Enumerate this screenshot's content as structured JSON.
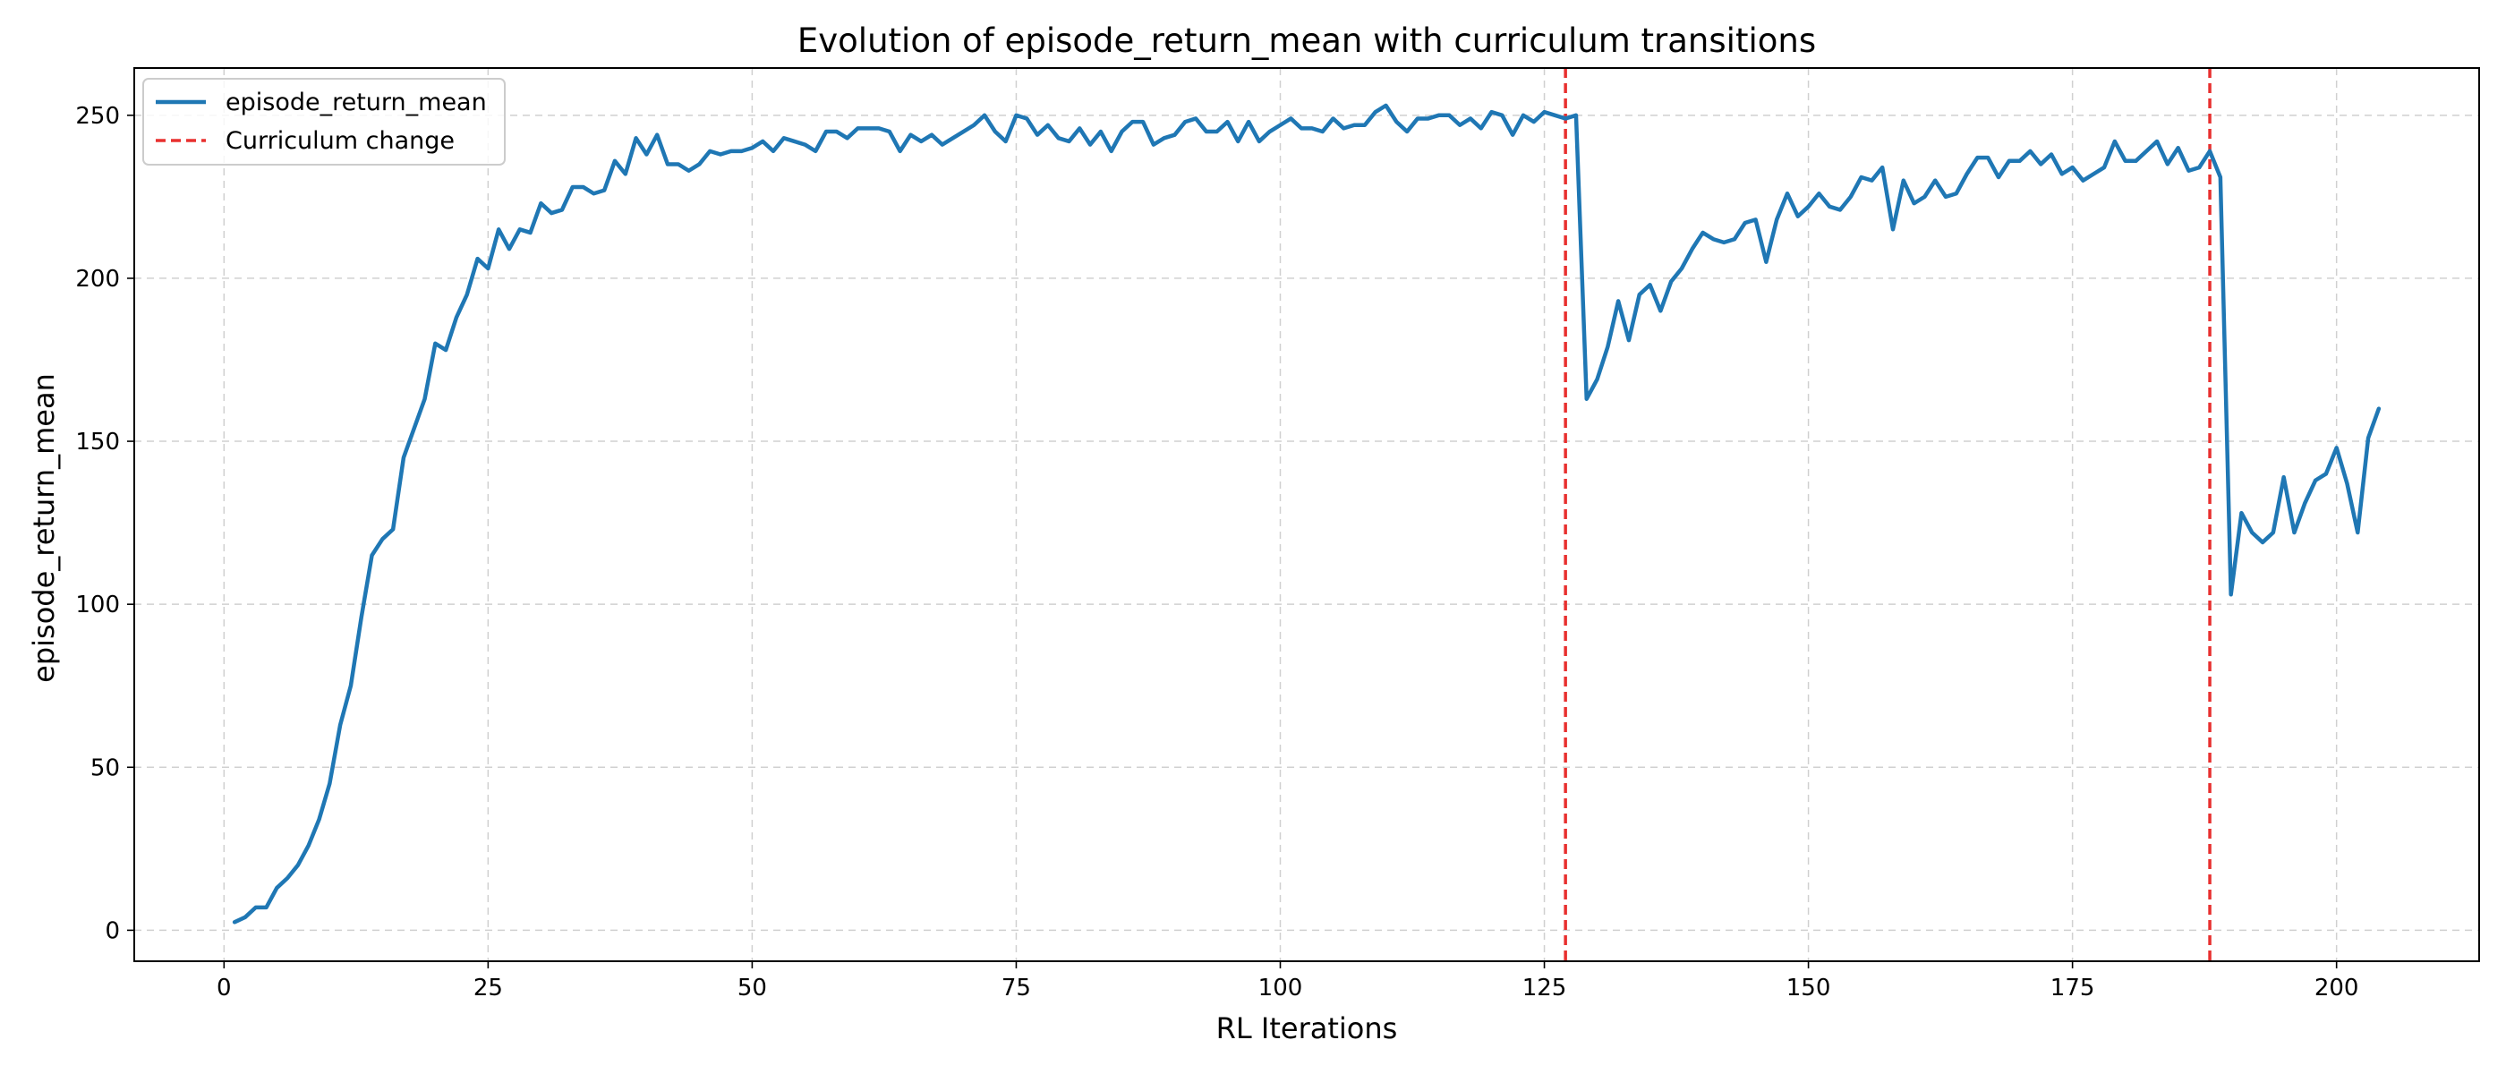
{
  "chart_data": {
    "type": "line",
    "title": "Evolution of episode_return_mean with curriculum transitions",
    "xlabel": "RL Iterations",
    "ylabel": "episode_return_mean",
    "xlim": [
      -8.5,
      213.5
    ],
    "ylim": [
      -9.5,
      264.5
    ],
    "xticks": [
      0,
      25,
      50,
      75,
      100,
      125,
      150,
      175,
      200
    ],
    "yticks": [
      0,
      50,
      100,
      150,
      200,
      250
    ],
    "grid": true,
    "legend_position": "top-left",
    "colors": {
      "series": "#1f77b4",
      "curriculum": "#e8302f"
    },
    "series": [
      {
        "name": "episode_return_mean",
        "x": [
          1,
          2,
          3,
          4,
          5,
          6,
          7,
          8,
          9,
          10,
          11,
          12,
          13,
          14,
          15,
          16,
          17,
          18,
          19,
          20,
          21,
          22,
          23,
          24,
          25,
          26,
          27,
          28,
          29,
          30,
          31,
          32,
          33,
          34,
          35,
          36,
          37,
          38,
          39,
          40,
          41,
          42,
          43,
          44,
          45,
          46,
          47,
          48,
          49,
          50,
          51,
          52,
          53,
          54,
          55,
          56,
          57,
          58,
          59,
          60,
          61,
          62,
          63,
          64,
          65,
          66,
          67,
          68,
          69,
          70,
          71,
          72,
          73,
          74,
          75,
          76,
          77,
          78,
          79,
          80,
          81,
          82,
          83,
          84,
          85,
          86,
          87,
          88,
          89,
          90,
          91,
          92,
          93,
          94,
          95,
          96,
          97,
          98,
          99,
          100,
          101,
          102,
          103,
          104,
          105,
          106,
          107,
          108,
          109,
          110,
          111,
          112,
          113,
          114,
          115,
          116,
          117,
          118,
          119,
          120,
          121,
          122,
          123,
          124,
          125,
          126,
          127,
          128,
          129,
          130,
          131,
          132,
          133,
          134,
          135,
          136,
          137,
          138,
          139,
          140,
          141,
          142,
          143,
          144,
          145,
          146,
          147,
          148,
          149,
          150,
          151,
          152,
          153,
          154,
          155,
          156,
          157,
          158,
          159,
          160,
          161,
          162,
          163,
          164,
          165,
          166,
          167,
          168,
          169,
          170,
          171,
          172,
          173,
          174,
          175,
          176,
          177,
          178,
          179,
          180,
          181,
          182,
          183,
          184,
          185,
          186,
          187,
          188,
          189,
          190,
          191,
          192,
          193,
          194,
          195,
          196,
          197,
          198,
          199,
          200,
          201,
          202,
          203,
          204
        ],
        "values": [
          2.5,
          4,
          7,
          7,
          13,
          16,
          20,
          26,
          34,
          45,
          63,
          75,
          96,
          115,
          120,
          123,
          145,
          154,
          163,
          180,
          178,
          188,
          195,
          206,
          203,
          215,
          209,
          215,
          214,
          223,
          220,
          221,
          228,
          228,
          226,
          227,
          236,
          232,
          243,
          238,
          244,
          235,
          235,
          233,
          235,
          239,
          238,
          239,
          239,
          240,
          242,
          239,
          243,
          242,
          241,
          239,
          245,
          245,
          243,
          246,
          246,
          246,
          245,
          239,
          244,
          242,
          244,
          241,
          243,
          245,
          247,
          250,
          245,
          242,
          250,
          249,
          244,
          247,
          243,
          242,
          246,
          241,
          245,
          239,
          245,
          248,
          248,
          241,
          243,
          244,
          248,
          249,
          245,
          245,
          248,
          242,
          248,
          242,
          245,
          247,
          249,
          246,
          246,
          245,
          249,
          246,
          247,
          247,
          251,
          253,
          248,
          245,
          249,
          249,
          250,
          250,
          247,
          249,
          246,
          251,
          250,
          244,
          250,
          248,
          251,
          250,
          249,
          250,
          163,
          169,
          179,
          193,
          181,
          195,
          198,
          190,
          199,
          203,
          209,
          214,
          212,
          211,
          212,
          217,
          218,
          205,
          218,
          226,
          219,
          222,
          226,
          222,
          221,
          225,
          231,
          230,
          234,
          215,
          230,
          223,
          225,
          230,
          225,
          226,
          232,
          237,
          237,
          231,
          236,
          236,
          239,
          235,
          238,
          232,
          234,
          230,
          232,
          234,
          242,
          236,
          236,
          239,
          242,
          235,
          240,
          233,
          234,
          239,
          231,
          103,
          128,
          122,
          119,
          122,
          139,
          122,
          131,
          138,
          140,
          148,
          137,
          122,
          151,
          160
        ]
      }
    ],
    "curriculum_changes": [
      127,
      188
    ],
    "legend": [
      {
        "label": "episode_return_mean",
        "style": "solid"
      },
      {
        "label": "Curriculum change",
        "style": "dashed"
      }
    ]
  }
}
